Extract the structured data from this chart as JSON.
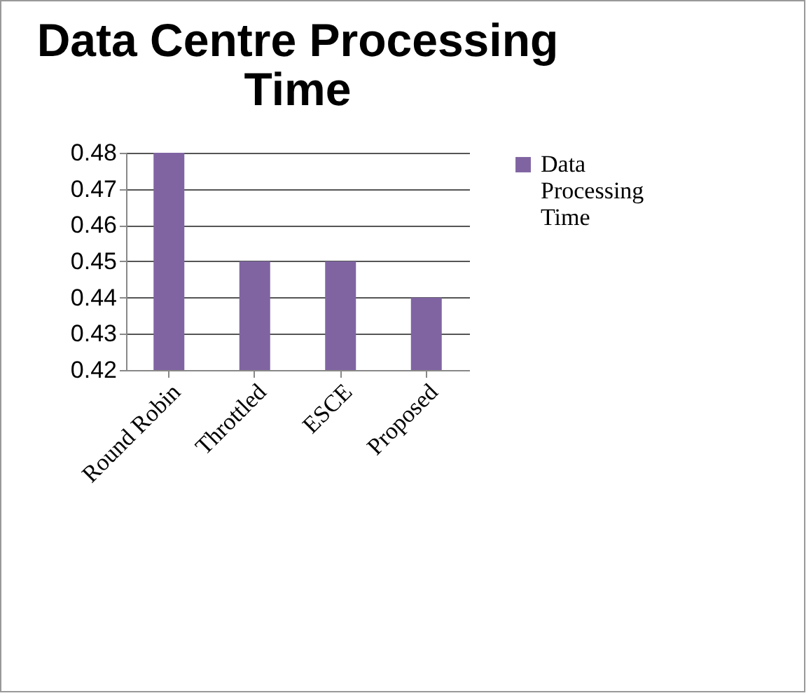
{
  "chart_data": {
    "type": "bar",
    "title": "Data Centre Processing Time",
    "categories": [
      "Round Robin",
      "Throttled",
      "ESCE",
      "Proposed"
    ],
    "series": [
      {
        "name": "Data Processing Time",
        "color": "#8064a2",
        "values": [
          0.48,
          0.45,
          0.45,
          0.44
        ]
      }
    ],
    "ylim": [
      0.42,
      0.48
    ],
    "yticks": [
      0.42,
      0.43,
      0.44,
      0.45,
      0.46,
      0.47,
      0.48
    ],
    "grid": "y",
    "legend": "right"
  }
}
